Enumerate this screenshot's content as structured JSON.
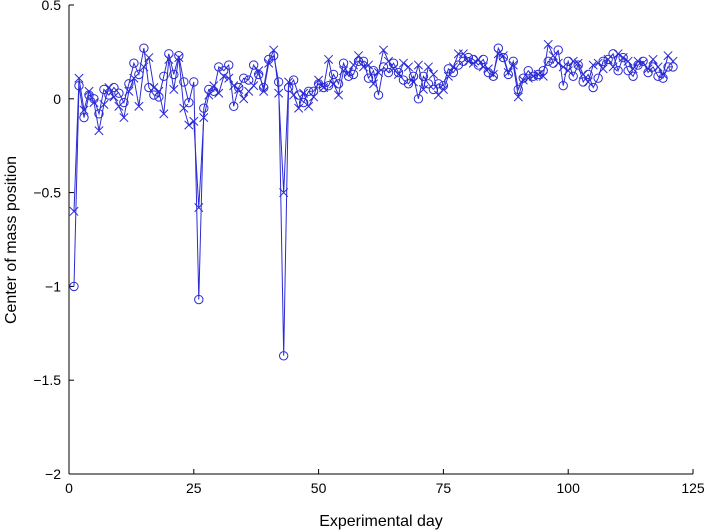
{
  "chart_data": {
    "type": "line",
    "xlabel": "Experimental day",
    "ylabel": "Center of mass position",
    "xlim": [
      0,
      125
    ],
    "ylim": [
      -2,
      0.5
    ],
    "xticks": [
      0,
      25,
      50,
      75,
      100,
      125
    ],
    "yticks": [
      -2,
      -1.5,
      -1,
      -0.5,
      0,
      0.5
    ],
    "xtick_labels": [
      "0",
      "25",
      "50",
      "75",
      "100",
      "125"
    ],
    "ytick_labels": [
      "−2",
      "−1.5",
      "−1",
      "−0.5",
      "0",
      "0.5"
    ],
    "grid": false,
    "legend": "none",
    "color": "#2b2bd6",
    "series": [
      {
        "marker": "circle",
        "x": [
          1,
          2,
          3,
          4,
          5,
          6,
          7,
          8,
          9,
          10,
          11,
          12,
          13,
          14,
          15,
          16,
          17,
          18,
          19,
          20,
          21,
          22,
          23,
          24,
          25,
          26,
          27,
          28,
          29,
          30,
          31,
          32,
          33,
          34,
          35,
          36,
          37,
          38,
          39,
          40,
          41,
          42,
          43,
          44,
          45,
          46,
          47,
          48,
          49,
          50,
          51,
          52,
          53,
          54,
          55,
          56,
          57,
          58,
          59,
          60,
          61,
          62,
          63,
          64,
          65,
          66,
          67,
          68,
          69,
          70,
          71,
          72,
          73,
          74,
          75,
          76,
          77,
          78,
          79,
          80,
          81,
          82,
          83,
          84,
          85,
          86,
          87,
          88,
          89,
          90,
          91,
          92,
          93,
          94,
          95,
          96,
          97,
          98,
          99,
          100,
          101,
          102,
          103,
          104,
          105,
          106,
          107,
          108,
          109,
          110,
          111,
          112,
          113,
          114,
          115,
          116,
          117,
          118,
          119,
          120,
          121
        ],
        "y": [
          -1.0,
          0.07,
          -0.1,
          0.02,
          0.0,
          -0.08,
          0.05,
          0.02,
          0.06,
          0.03,
          -0.02,
          0.08,
          0.19,
          0.13,
          0.27,
          0.06,
          0.02,
          0.01,
          0.12,
          0.24,
          0.13,
          0.23,
          0.09,
          -0.02,
          0.09,
          -1.07,
          -0.05,
          0.05,
          0.04,
          0.17,
          0.15,
          0.18,
          -0.04,
          0.06,
          0.11,
          0.1,
          0.18,
          0.13,
          0.06,
          0.21,
          0.23,
          0.09,
          -1.37,
          0.06,
          0.1,
          0.02,
          -0.02,
          0.04,
          0.04,
          0.08,
          0.06,
          0.07,
          0.13,
          0.08,
          0.19,
          0.12,
          0.13,
          0.2,
          0.2,
          0.11,
          0.15,
          0.02,
          0.17,
          0.14,
          0.19,
          0.14,
          0.1,
          0.08,
          0.12,
          0.0,
          0.12,
          0.08,
          0.05,
          0.08,
          0.07,
          0.16,
          0.14,
          0.18,
          0.2,
          0.22,
          0.21,
          0.18,
          0.21,
          0.14,
          0.12,
          0.27,
          0.22,
          0.13,
          0.2,
          0.05,
          0.11,
          0.15,
          0.12,
          0.13,
          0.15,
          0.2,
          0.19,
          0.26,
          0.07,
          0.2,
          0.12,
          0.18,
          0.09,
          0.13,
          0.06,
          0.11,
          0.2,
          0.21,
          0.24,
          0.15,
          0.22,
          0.15,
          0.12,
          0.18,
          0.2,
          0.14,
          0.17,
          0.12,
          0.11,
          0.17,
          0.17
        ]
      },
      {
        "marker": "x",
        "x": [
          1,
          2,
          3,
          4,
          5,
          6,
          7,
          8,
          9,
          10,
          11,
          12,
          13,
          14,
          15,
          16,
          17,
          18,
          19,
          20,
          21,
          22,
          23,
          24,
          25,
          26,
          27,
          28,
          29,
          30,
          31,
          32,
          33,
          34,
          35,
          36,
          37,
          38,
          39,
          40,
          41,
          42,
          43,
          44,
          45,
          46,
          47,
          48,
          49,
          50,
          51,
          52,
          53,
          54,
          55,
          56,
          57,
          58,
          59,
          60,
          61,
          62,
          63,
          64,
          65,
          66,
          67,
          68,
          69,
          70,
          71,
          72,
          73,
          74,
          75,
          76,
          77,
          78,
          79,
          80,
          81,
          82,
          83,
          84,
          85,
          86,
          87,
          88,
          89,
          90,
          91,
          92,
          93,
          94,
          95,
          96,
          97,
          98,
          99,
          100,
          101,
          102,
          103,
          104,
          105,
          106,
          107,
          108,
          109,
          110,
          111,
          112,
          113,
          114,
          115,
          116,
          117,
          118,
          119,
          120,
          121
        ],
        "y": [
          -0.6,
          0.11,
          -0.06,
          0.04,
          -0.02,
          -0.17,
          -0.03,
          0.06,
          0.01,
          -0.04,
          -0.1,
          0.04,
          0.11,
          -0.04,
          0.17,
          0.22,
          0.06,
          0.04,
          -0.08,
          0.21,
          0.05,
          0.22,
          -0.05,
          -0.14,
          -0.12,
          -0.58,
          -0.1,
          0.02,
          0.07,
          0.03,
          0.12,
          0.11,
          0.07,
          0.05,
          0.0,
          0.04,
          0.07,
          0.15,
          0.04,
          0.19,
          0.26,
          0.03,
          -0.5,
          0.09,
          0.02,
          -0.05,
          0.03,
          -0.04,
          0.01,
          0.1,
          0.06,
          0.21,
          0.08,
          0.02,
          0.15,
          0.14,
          0.18,
          0.23,
          0.17,
          0.18,
          0.08,
          0.14,
          0.26,
          0.2,
          0.16,
          0.13,
          0.19,
          0.17,
          0.09,
          0.18,
          0.05,
          0.17,
          0.13,
          0.02,
          0.05,
          0.12,
          0.17,
          0.24,
          0.24,
          0.2,
          0.19,
          0.21,
          0.17,
          0.16,
          0.13,
          0.24,
          0.23,
          0.14,
          0.18,
          0.01,
          0.1,
          0.11,
          0.12,
          0.13,
          0.12,
          0.29,
          0.23,
          0.19,
          0.17,
          0.15,
          0.2,
          0.19,
          0.13,
          0.09,
          0.18,
          0.19,
          0.16,
          0.21,
          0.17,
          0.24,
          0.22,
          0.2,
          0.16,
          0.2,
          0.19,
          0.16,
          0.21,
          0.17,
          0.13,
          0.23,
          0.2
        ]
      }
    ]
  }
}
